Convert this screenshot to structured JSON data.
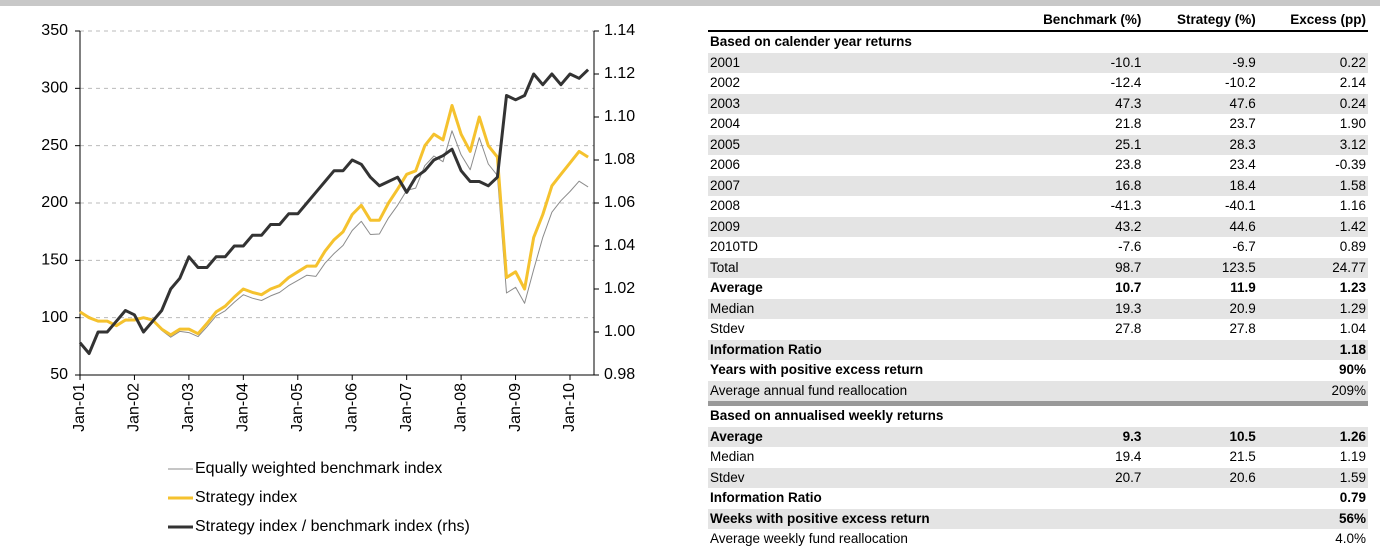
{
  "chart_data": {
    "type": "line",
    "categories": [
      "Jan-01",
      null,
      null,
      null,
      null,
      null,
      "Jan-02",
      null,
      null,
      null,
      null,
      null,
      "Jan-03",
      null,
      null,
      null,
      null,
      null,
      "Jan-04",
      null,
      null,
      null,
      null,
      null,
      "Jan-05",
      null,
      null,
      null,
      null,
      null,
      "Jan-06",
      null,
      null,
      null,
      null,
      null,
      "Jan-07",
      null,
      null,
      null,
      null,
      null,
      "Jan-08",
      null,
      null,
      null,
      null,
      null,
      "Jan-09",
      null,
      null,
      null,
      null,
      null,
      "Jan-10",
      null,
      null
    ],
    "series": [
      {
        "name": "Equally weighted benchmark index",
        "color": "#8c8c8c",
        "width": 1,
        "values": [
          105.5,
          101,
          97,
          97,
          92.5,
          97,
          97.2,
          100,
          97.5,
          89,
          83,
          88,
          87,
          83.5,
          92,
          101.5,
          106,
          113.5,
          120,
          117,
          115,
          119,
          122,
          128,
          132.5,
          137,
          136,
          147.5,
          156,
          163,
          176,
          184,
          172.5,
          173,
          187,
          198,
          211,
          213,
          232.5,
          241,
          236,
          263,
          242,
          229,
          257,
          234,
          224,
          121.5,
          126.5,
          112.5,
          142,
          170,
          192,
          202,
          210,
          219,
          214
        ]
      },
      {
        "name": "Strategy index",
        "color": "#f5c22e",
        "width": 3,
        "values": [
          105,
          100,
          97,
          97,
          93,
          98,
          98,
          100,
          98,
          90,
          85,
          90,
          90,
          86,
          95,
          105,
          110,
          118,
          125,
          122,
          120,
          125,
          128,
          135,
          140,
          145,
          145,
          158,
          168,
          175,
          190,
          198,
          185,
          185,
          200,
          212,
          225,
          228,
          250,
          260,
          255,
          285,
          260,
          245,
          275,
          250,
          240,
          135,
          140,
          125,
          170,
          190,
          215,
          225,
          235,
          245,
          240
        ]
      },
      {
        "name": "Strategy index / benchmark index (rhs)",
        "color": "#333333",
        "width": 3,
        "axis": "y2",
        "values": [
          0.995,
          0.99,
          1.0,
          1.0,
          1.005,
          1.01,
          1.008,
          1.0,
          1.005,
          1.01,
          1.02,
          1.025,
          1.035,
          1.03,
          1.03,
          1.035,
          1.035,
          1.04,
          1.04,
          1.045,
          1.045,
          1.05,
          1.05,
          1.055,
          1.055,
          1.06,
          1.065,
          1.07,
          1.075,
          1.075,
          1.08,
          1.078,
          1.072,
          1.068,
          1.07,
          1.072,
          1.065,
          1.072,
          1.075,
          1.08,
          1.082,
          1.085,
          1.075,
          1.07,
          1.07,
          1.068,
          1.072,
          1.11,
          1.108,
          1.11,
          1.12,
          1.115,
          1.12,
          1.115,
          1.12,
          1.118,
          1.122
        ]
      }
    ],
    "ylim": [
      50,
      350
    ],
    "yticks": [
      50,
      100,
      150,
      200,
      250,
      300,
      350
    ],
    "y2lim": [
      0.98,
      1.14
    ],
    "y2ticks": [
      0.98,
      {
        "value": 1,
        "label": "1.00"
      },
      1.02,
      1.04,
      1.06,
      1.08,
      {
        "value": 1.1,
        "label": "1.10"
      },
      1.12,
      1.14
    ],
    "grid": true
  },
  "table": {
    "columns": [
      "Benchmark (%)",
      "Strategy (%)",
      "Excess (pp)"
    ],
    "sections": [
      {
        "title": "Based on calender year returns",
        "rows": [
          {
            "cells": [
              "2001",
              "-10.1",
              "-9.9",
              "0.22"
            ]
          },
          {
            "cells": [
              "2002",
              "-12.4",
              "-10.2",
              "2.14"
            ]
          },
          {
            "cells": [
              "2003",
              "47.3",
              "47.6",
              "0.24"
            ]
          },
          {
            "cells": [
              "2004",
              "21.8",
              "23.7",
              "1.90"
            ]
          },
          {
            "cells": [
              "2005",
              "25.1",
              "28.3",
              "3.12"
            ]
          },
          {
            "cells": [
              "2006",
              "23.8",
              "23.4",
              "-0.39"
            ]
          },
          {
            "cells": [
              "2007",
              "16.8",
              "18.4",
              "1.58"
            ]
          },
          {
            "cells": [
              "2008",
              "-41.3",
              "-40.1",
              "1.16"
            ]
          },
          {
            "cells": [
              "2009",
              "43.2",
              "44.6",
              "1.42"
            ]
          },
          {
            "cells": [
              "2010TD",
              "-7.6",
              "-6.7",
              "0.89"
            ]
          },
          {
            "cells": [
              "Total",
              "98.7",
              "123.5",
              "24.77"
            ]
          },
          {
            "cells": [
              "Average",
              "10.7",
              "11.9",
              "1.23"
            ],
            "bold": true
          },
          {
            "cells": [
              "Median",
              "19.3",
              "20.9",
              "1.29"
            ]
          },
          {
            "cells": [
              "Stdev",
              "27.8",
              "27.8",
              "1.04"
            ]
          },
          {
            "cells": [
              "Information Ratio",
              "1.18"
            ],
            "bold": true
          },
          {
            "cells": [
              "Years with positive excess return",
              "90%"
            ],
            "bold": true
          },
          {
            "cells": [
              "Average annual fund reallocation",
              "209%"
            ]
          }
        ]
      },
      {
        "title": "Based on annualised weekly returns",
        "rows": [
          {
            "cells": [
              "Average",
              "9.3",
              "10.5",
              "1.26"
            ],
            "bold": true
          },
          {
            "cells": [
              "Median",
              "19.4",
              "21.5",
              "1.19"
            ]
          },
          {
            "cells": [
              "Stdev",
              "20.7",
              "20.6",
              "1.59"
            ]
          },
          {
            "cells": [
              "Information Ratio",
              "0.79"
            ],
            "bold": true
          },
          {
            "cells": [
              "Weeks with positive excess return",
              "56%"
            ],
            "bold": true
          },
          {
            "cells": [
              "Average weekly fund reallocation",
              "4.0%"
            ]
          }
        ]
      }
    ]
  }
}
